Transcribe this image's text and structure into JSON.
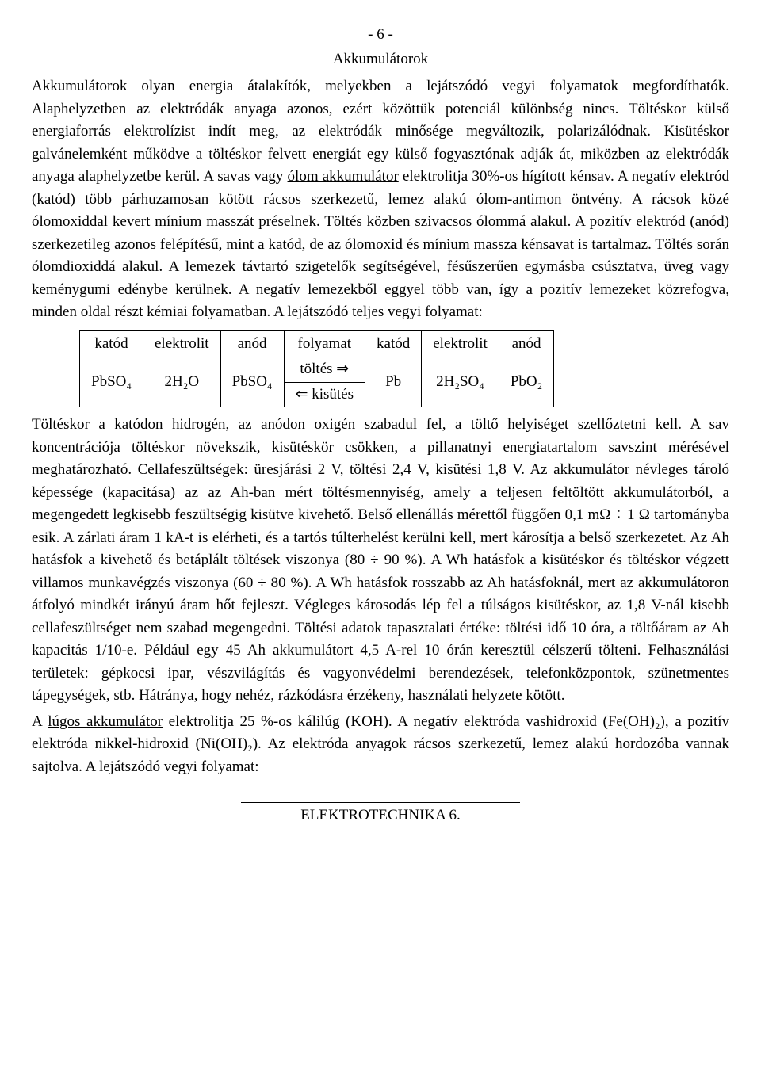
{
  "pageNumber": "- 6 -",
  "title": "Akkumulátorok",
  "para1_a": "Akkumulátorok olyan energia átalakítók, melyekben a lejátszódó vegyi folyamatok megfordíthatók. Alaphelyzetben az elektródák anyaga azonos, ezért közöttük potenciál különbség nincs. Töltéskor külső energiaforrás elektrolízist indít meg, az elektródák minősége megváltozik, polarizálódnak. Kisütéskor galvánelemként működve a töltéskor felvett energiát egy külső fogyasztónak adják át, miközben az elektródák anyaga alaphelyzetbe kerül.",
  "para1_b1": "A savas vagy ",
  "para1_underline1": "ólom akkumulátor",
  "para1_b2": " elektrolitja 30%-os hígított kénsav. A negatív elektród (katód) több párhuzamosan kötött rácsos szerkezetű, lemez alakú ólom-antimon öntvény. A rácsok közé ólomoxiddal kevert mínium masszát préselnek. Töltés közben szivacsos ólommá alakul. A pozitív elektród (anód) szerkezetileg azonos felépítésű, mint a katód, de az ólomoxid és mínium massza kénsavat is tartalmaz. Töltés során ólomdioxiddá alakul. A lemezek távtartó szigetelők segítségével, fésűszerűen egymásba csúsztatva, üveg vagy keménygumi edénybe kerülnek. A negatív lemezekből eggyel több van, így a pozitív lemezeket közrefogva, minden oldal részt kémiai folyamatban. A lejátszódó teljes vegyi folyamat:",
  "table": {
    "headers": [
      "katód",
      "elektrolit",
      "anód",
      "folyamat",
      "katód",
      "elektrolit",
      "anód"
    ],
    "r1": "PbSO₄",
    "r2": "2H₂O",
    "r3": "PbSO₄",
    "r4a": "töltés ⇒",
    "r4b": "⇐ kisütés",
    "r5": "Pb",
    "r6": "2H₂SO₄",
    "r7": "PbO₂"
  },
  "para2_a": "Töltéskor a katódon hidrogén, az anódon oxigén szabadul fel, a töltő helyiséget szellőztetni kell. A sav koncentrációja töltéskor növekszik, kisütéskör csökken, a pillanatnyi energiatartalom savszint mérésével meghatározható. Cellafeszültségek: üresjárási 2 V, töltési 2,4 V, kisütési 1,8 V. Az akkumulátor névleges tároló képessége (kapacitása) az az Ah-ban mért töltésmennyiség, amely a teljesen feltöltött akkumulátorból, a megengedett legkisebb feszültségig kisütve kivehető. Belső ellenállás mérettől függően 0,1 mΩ ÷ 1 Ω tartományba esik. A zárlati áram 1 kA-t is elérheti, és a tartós túlterhelést kerülni kell, mert károsítja a belső szerkezetet. Az Ah hatásfok a kivehető és betáplált töltések viszonya (80 ÷ 90 %). A Wh hatásfok a kisütéskor és töltéskor végzett villamos munkavégzés viszonya (60 ÷ 80 %). A Wh hatásfok rosszabb az Ah hatásfoknál, mert az akkumulátoron átfolyó mindkét irányú áram hőt fejleszt. Végleges károsodás lép fel a túlságos kisütéskor, az 1,8 V-nál kisebb cellafeszültséget nem szabad megengedni. Töltési adatok tapasztalati értéke: töltési idő 10 óra, a töltőáram az Ah kapacitás 1/10-e. Például egy 45 Ah akkumulátort 4,5 A-rel 10 órán keresztül célszerű tölteni. Felhasználási területek: gépkocsi ipar, vészvilágítás és vagyonvédelmi berendezések, telefonközpontok, szünetmentes tápegységek, stb. Hátránya, hogy nehéz, rázkódásra érzékeny, használati helyzete kötött.",
  "para3_a": "A ",
  "para3_underline": "lúgos akkumulátor",
  "para3_b": " elektrolitja 25 %-os kálilúg (KOH). A negatív elektróda vashidroxid (Fe(OH)₂), a pozitív elektróda nikkel-hidroxid (Ni(OH)₂). Az elektróda anyagok rácsos szerkezetű, lemez alakú hordozóba vannak sajtolva. A lejátszódó vegyi folyamat:",
  "footer": "ELEKTROTECHNIKA  6."
}
